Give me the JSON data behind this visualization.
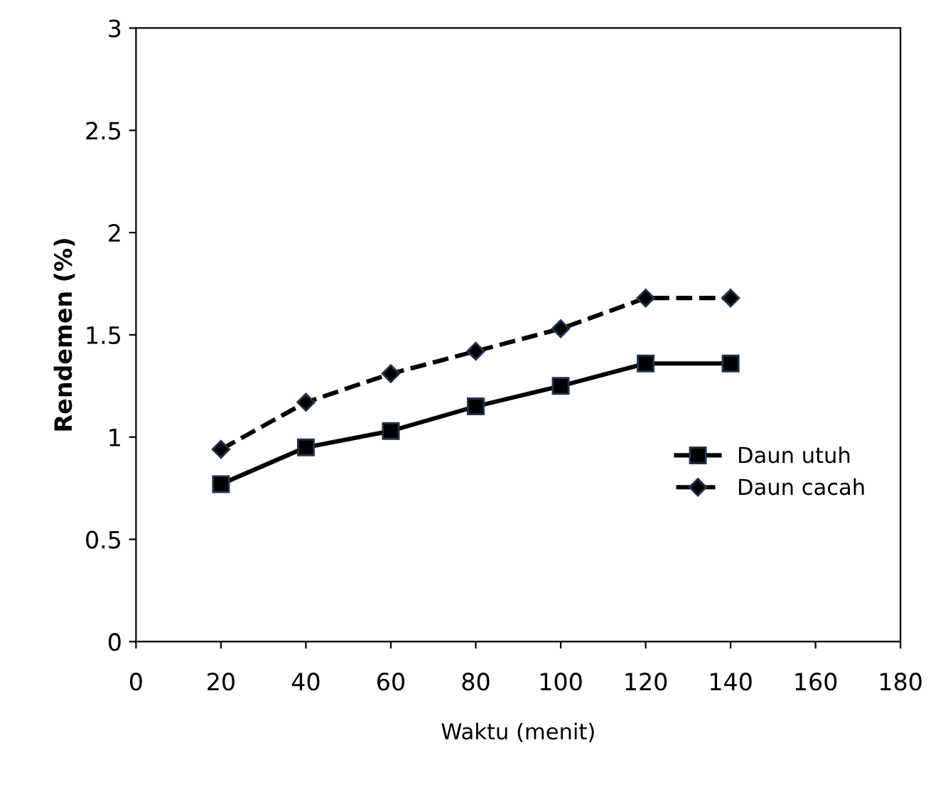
{
  "chart_data": {
    "type": "line",
    "xlabel": "Waktu (menit)",
    "ylabel": "Rendemen (%)",
    "x": [
      20,
      40,
      60,
      80,
      100,
      120,
      140
    ],
    "series": [
      {
        "name": "Daun utuh",
        "color": "#000000",
        "marker": "square",
        "line_style": "solid",
        "values": [
          0.77,
          0.95,
          1.03,
          1.15,
          1.25,
          1.36,
          1.36
        ]
      },
      {
        "name": "Daun cacah",
        "color": "#000000",
        "marker": "diamond",
        "line_style": "dashed",
        "values": [
          0.94,
          1.17,
          1.31,
          1.42,
          1.53,
          1.68,
          1.68
        ]
      }
    ],
    "xlim": [
      0,
      180
    ],
    "xticks": [
      0,
      20,
      40,
      60,
      80,
      100,
      120,
      140,
      160,
      180
    ],
    "ylim": [
      0,
      3
    ],
    "yticks": [
      0,
      0.5,
      1,
      1.5,
      2,
      2.5,
      3
    ],
    "grid": false,
    "legend": "lower right"
  }
}
